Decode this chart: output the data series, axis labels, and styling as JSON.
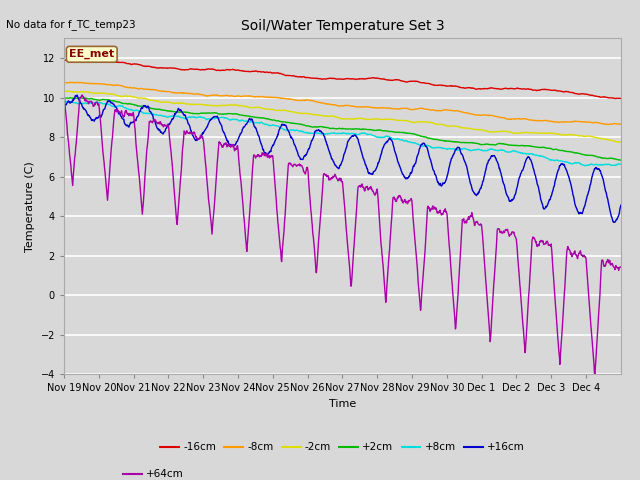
{
  "title": "Soil/Water Temperature Set 3",
  "no_data_text": "No data for f_TC_temp23",
  "xlabel": "Time",
  "ylabel": "Temperature (C)",
  "ylim": [
    -4,
    13
  ],
  "yticks": [
    -4,
    -2,
    0,
    2,
    4,
    6,
    8,
    10,
    12
  ],
  "bg_color": "#d8d8d8",
  "plot_bg_color": "#d8d8d8",
  "annotation_text": "EE_met",
  "annotation_bg": "#ffffcc",
  "annotation_border": "#996633",
  "series": [
    {
      "label": "-16cm",
      "color": "#dd0000"
    },
    {
      "label": "-8cm",
      "color": "#ff9900"
    },
    {
      "label": "-2cm",
      "color": "#dddd00"
    },
    {
      "label": "+2cm",
      "color": "#00bb00"
    },
    {
      "label": "+8cm",
      "color": "#00dddd"
    },
    {
      "label": "+16cm",
      "color": "#0000cc"
    },
    {
      "label": "+64cm",
      "color": "#aa00aa"
    }
  ],
  "xtick_labels": [
    "Nov 19",
    "Nov 20",
    "Nov 21",
    "Nov 22",
    "Nov 23",
    "Nov 24",
    "Nov 25",
    "Nov 26",
    "Nov 27",
    "Nov 28",
    "Nov 29",
    "Nov 30",
    "Dec 1",
    "Dec 2",
    "Dec 3",
    "Dec 4"
  ]
}
